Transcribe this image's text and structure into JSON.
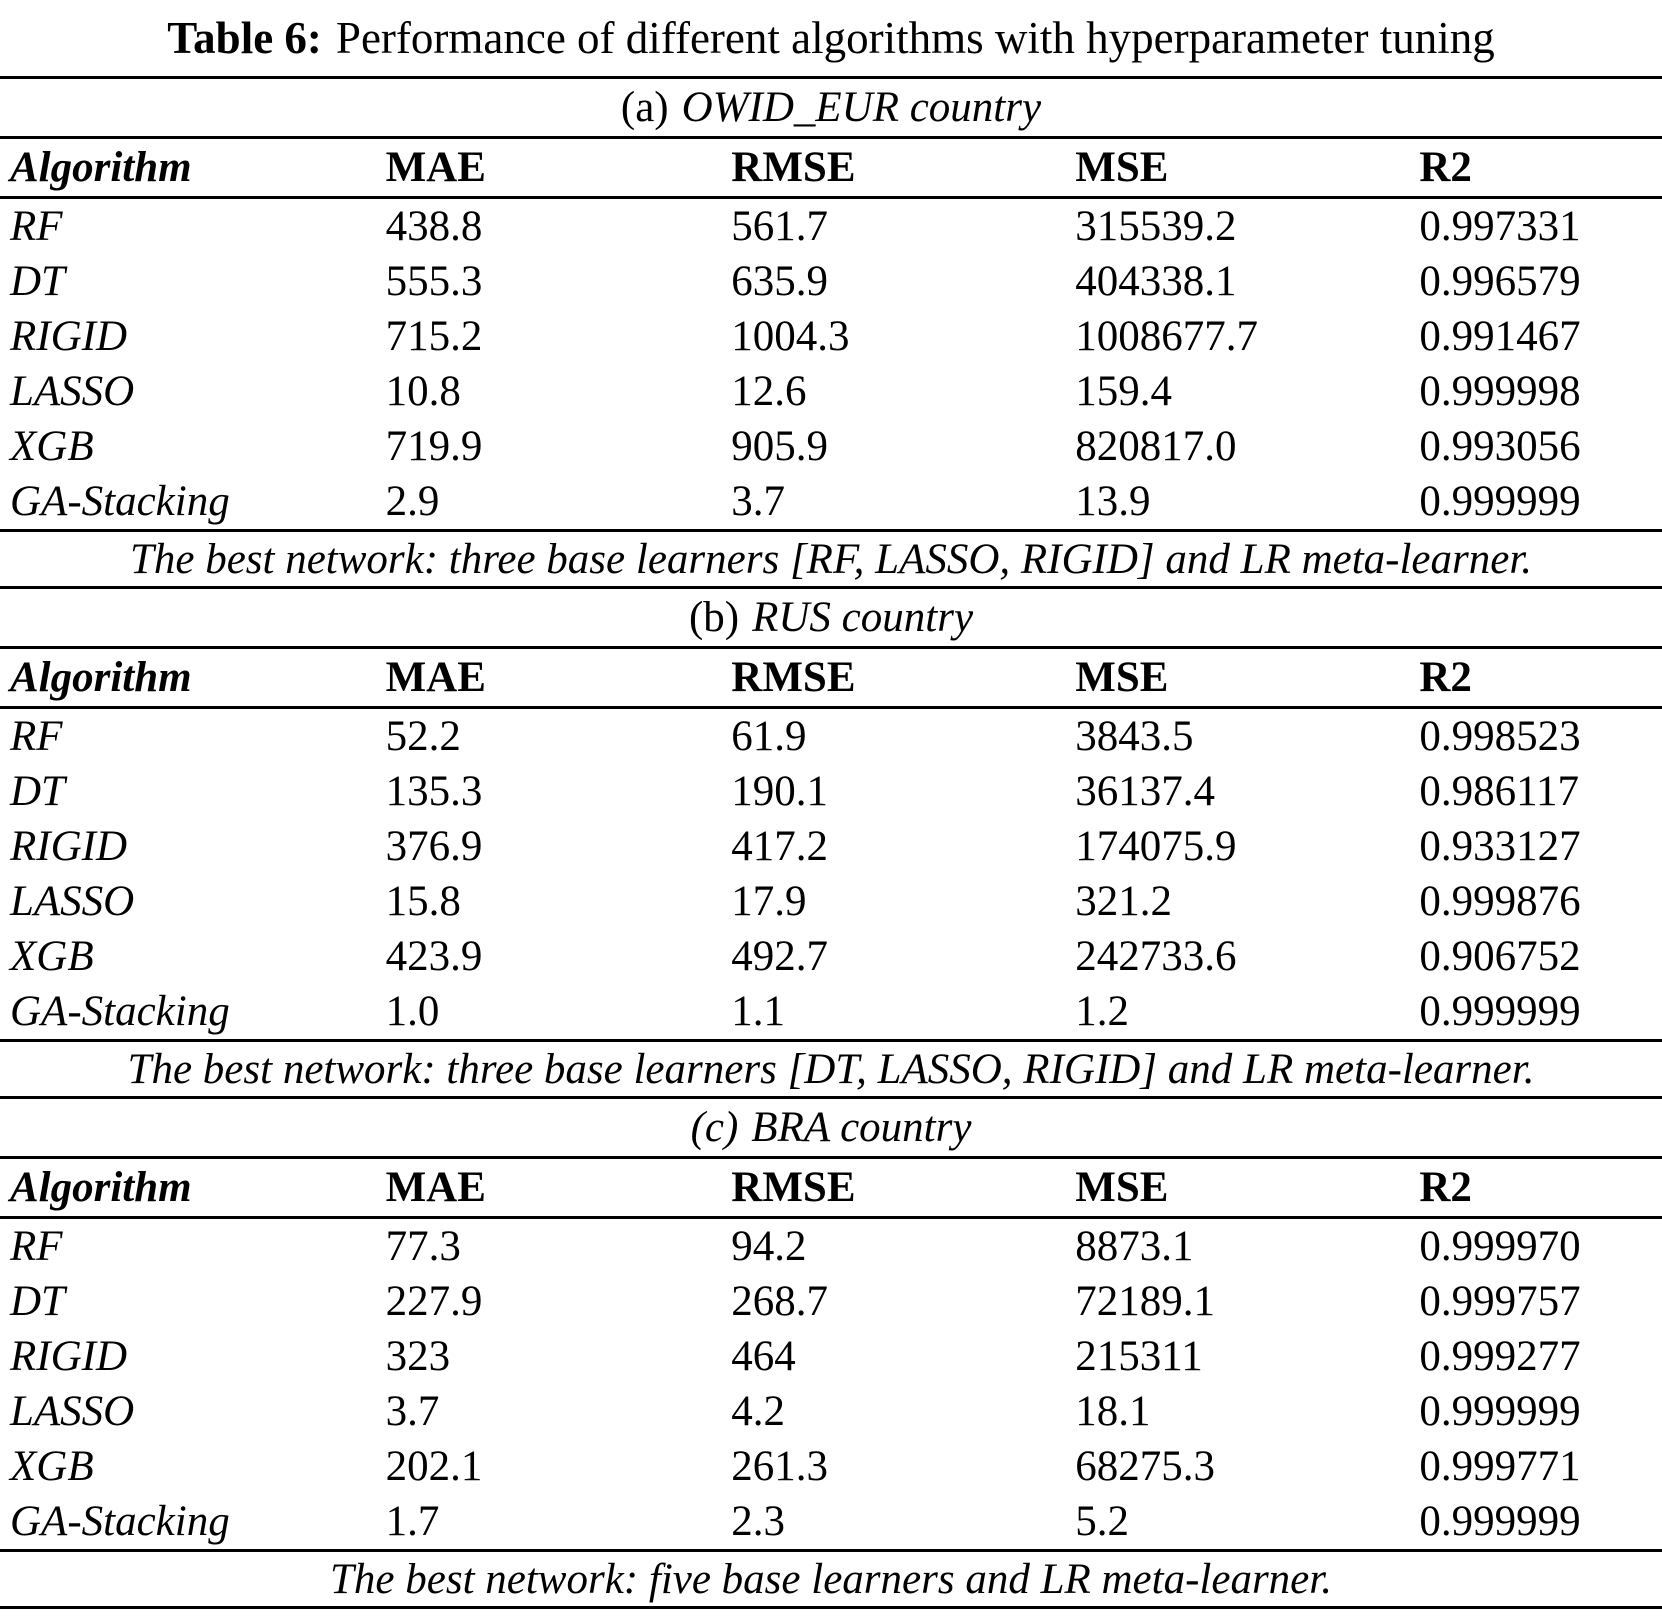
{
  "title": {
    "prefix": "Table 6:",
    "text": "Performance of different algorithms with hyperparameter tuning"
  },
  "columns": {
    "algorithm": "Algorithm",
    "mae": "MAE",
    "rmse": "RMSE",
    "mse": "MSE",
    "r2": "R2"
  },
  "colors": {
    "text": "#000000",
    "background": "#ffffff",
    "rule": "#000000"
  },
  "tables": [
    {
      "caption_prefix": "(a)",
      "caption_title": "OWID_EUR country",
      "rows": [
        {
          "algorithm": "RF",
          "mae": "438.8",
          "rmse": "561.7",
          "mse": "315539.2",
          "r2": "0.997331"
        },
        {
          "algorithm": "DT",
          "mae": "555.3",
          "rmse": "635.9",
          "mse": "404338.1",
          "r2": "0.996579"
        },
        {
          "algorithm": "RIGID",
          "mae": "715.2",
          "rmse": "1004.3",
          "mse": "1008677.7",
          "r2": "0.991467"
        },
        {
          "algorithm": "LASSO",
          "mae": "10.8",
          "rmse": "12.6",
          "mse": "159.4",
          "r2": "0.999998"
        },
        {
          "algorithm": "XGB",
          "mae": "719.9",
          "rmse": "905.9",
          "mse": "820817.0",
          "r2": "0.993056"
        },
        {
          "algorithm": "GA-Stacking",
          "mae": "2.9",
          "rmse": "3.7",
          "mse": "13.9",
          "r2": "0.999999"
        }
      ],
      "footnote": "The best network: three base learners [RF, LASSO, RIGID] and LR meta-learner."
    },
    {
      "caption_prefix": "(b)",
      "caption_title": "RUS country",
      "rows": [
        {
          "algorithm": "RF",
          "mae": "52.2",
          "rmse": "61.9",
          "mse": "3843.5",
          "r2": "0.998523"
        },
        {
          "algorithm": "DT",
          "mae": "135.3",
          "rmse": "190.1",
          "mse": "36137.4",
          "r2": "0.986117"
        },
        {
          "algorithm": "RIGID",
          "mae": "376.9",
          "rmse": "417.2",
          "mse": "174075.9",
          "r2": "0.933127"
        },
        {
          "algorithm": "LASSO",
          "mae": "15.8",
          "rmse": "17.9",
          "mse": "321.2",
          "r2": "0.999876"
        },
        {
          "algorithm": "XGB",
          "mae": "423.9",
          "rmse": "492.7",
          "mse": "242733.6",
          "r2": "0.906752"
        },
        {
          "algorithm": "GA-Stacking",
          "mae": "1.0",
          "rmse": "1.1",
          "mse": "1.2",
          "r2": "0.999999"
        }
      ],
      "footnote": "The best network: three base learners [DT, LASSO, RIGID] and LR meta-learner."
    },
    {
      "caption_prefix": "(c)",
      "caption_title": "BRA country",
      "rows": [
        {
          "algorithm": "RF",
          "mae": "77.3",
          "rmse": "94.2",
          "mse": "8873.1",
          "r2": "0.999970"
        },
        {
          "algorithm": "DT",
          "mae": "227.9",
          "rmse": "268.7",
          "mse": "72189.1",
          "r2": "0.999757"
        },
        {
          "algorithm": "RIGID",
          "mae": "323",
          "rmse": "464",
          "mse": "215311",
          "r2": "0.999277"
        },
        {
          "algorithm": "LASSO",
          "mae": "3.7",
          "rmse": "4.2",
          "mse": "18.1",
          "r2": "0.999999"
        },
        {
          "algorithm": "XGB",
          "mae": "202.1",
          "rmse": "261.3",
          "mse": "68275.3",
          "r2": "0.999771"
        },
        {
          "algorithm": "GA-Stacking",
          "mae": "1.7",
          "rmse": "2.3",
          "mse": "5.2",
          "r2": "0.999999"
        }
      ],
      "footnote": "The best network: five base learners and LR meta-learner."
    }
  ]
}
